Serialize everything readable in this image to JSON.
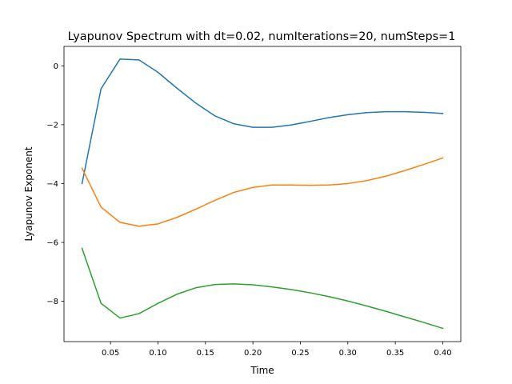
{
  "chart_data": {
    "type": "line",
    "title": "Lyapunov Spectrum with dt=0.02, numIterations=20, numSteps=1",
    "xlabel": "Time",
    "ylabel": "Lyapunov Exponent",
    "xlim": [
      0.001,
      0.419
    ],
    "ylim": [
      -9.37,
      0.66
    ],
    "xticks": [
      0.05,
      0.1,
      0.15,
      0.2,
      0.25,
      0.3,
      0.35,
      0.4
    ],
    "xtick_labels": [
      "0.05",
      "0.10",
      "0.15",
      "0.20",
      "0.25",
      "0.30",
      "0.35",
      "0.40"
    ],
    "yticks": [
      0,
      -2,
      -4,
      -6,
      -8
    ],
    "ytick_labels": [
      "0",
      "−2",
      "−4",
      "−6",
      "−8"
    ],
    "grid": false,
    "legend": false,
    "x": [
      0.02,
      0.04,
      0.06,
      0.08,
      0.1,
      0.12,
      0.14,
      0.16,
      0.18,
      0.2,
      0.22,
      0.24,
      0.26,
      0.28,
      0.3,
      0.32,
      0.34,
      0.36,
      0.38,
      0.4
    ],
    "series": [
      {
        "color": "#1f77b4",
        "values": [
          -4.0,
          -0.78,
          0.23,
          0.2,
          -0.22,
          -0.76,
          -1.27,
          -1.7,
          -1.97,
          -2.09,
          -2.09,
          -2.01,
          -1.89,
          -1.76,
          -1.66,
          -1.59,
          -1.56,
          -1.56,
          -1.58,
          -1.62
        ]
      },
      {
        "color": "#ff7f0e",
        "values": [
          -3.48,
          -4.8,
          -5.32,
          -5.45,
          -5.37,
          -5.15,
          -4.87,
          -4.57,
          -4.3,
          -4.13,
          -4.05,
          -4.05,
          -4.06,
          -4.05,
          -4.0,
          -3.9,
          -3.75,
          -3.56,
          -3.35,
          -3.13
        ]
      },
      {
        "color": "#2ca02c",
        "values": [
          -6.2,
          -8.07,
          -8.57,
          -8.42,
          -8.07,
          -7.76,
          -7.54,
          -7.43,
          -7.41,
          -7.44,
          -7.51,
          -7.6,
          -7.71,
          -7.84,
          -7.99,
          -8.16,
          -8.34,
          -8.53,
          -8.72,
          -8.92
        ]
      }
    ]
  }
}
